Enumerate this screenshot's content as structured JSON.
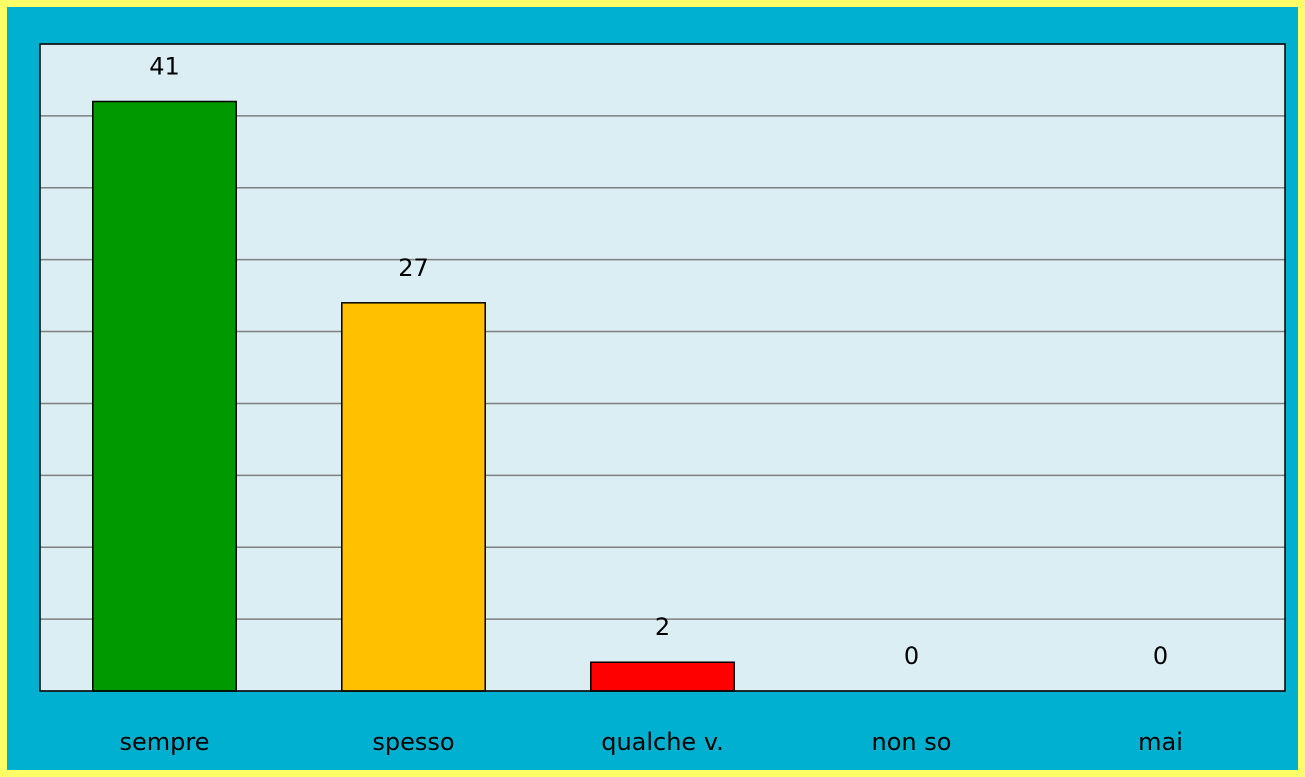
{
  "chart_data": {
    "type": "bar",
    "categories": [
      "sempre",
      "spesso",
      "qualche v.",
      "non so",
      "mai"
    ],
    "values": [
      41,
      27,
      2,
      0,
      0
    ],
    "colors": [
      "#009900",
      "#ffc000",
      "#ff0000",
      "#ffc000",
      "#009900"
    ],
    "ylim": [
      0,
      45
    ],
    "yticks": [
      0,
      5,
      10,
      15,
      20,
      25,
      30,
      35,
      40,
      45
    ],
    "grid": true
  }
}
